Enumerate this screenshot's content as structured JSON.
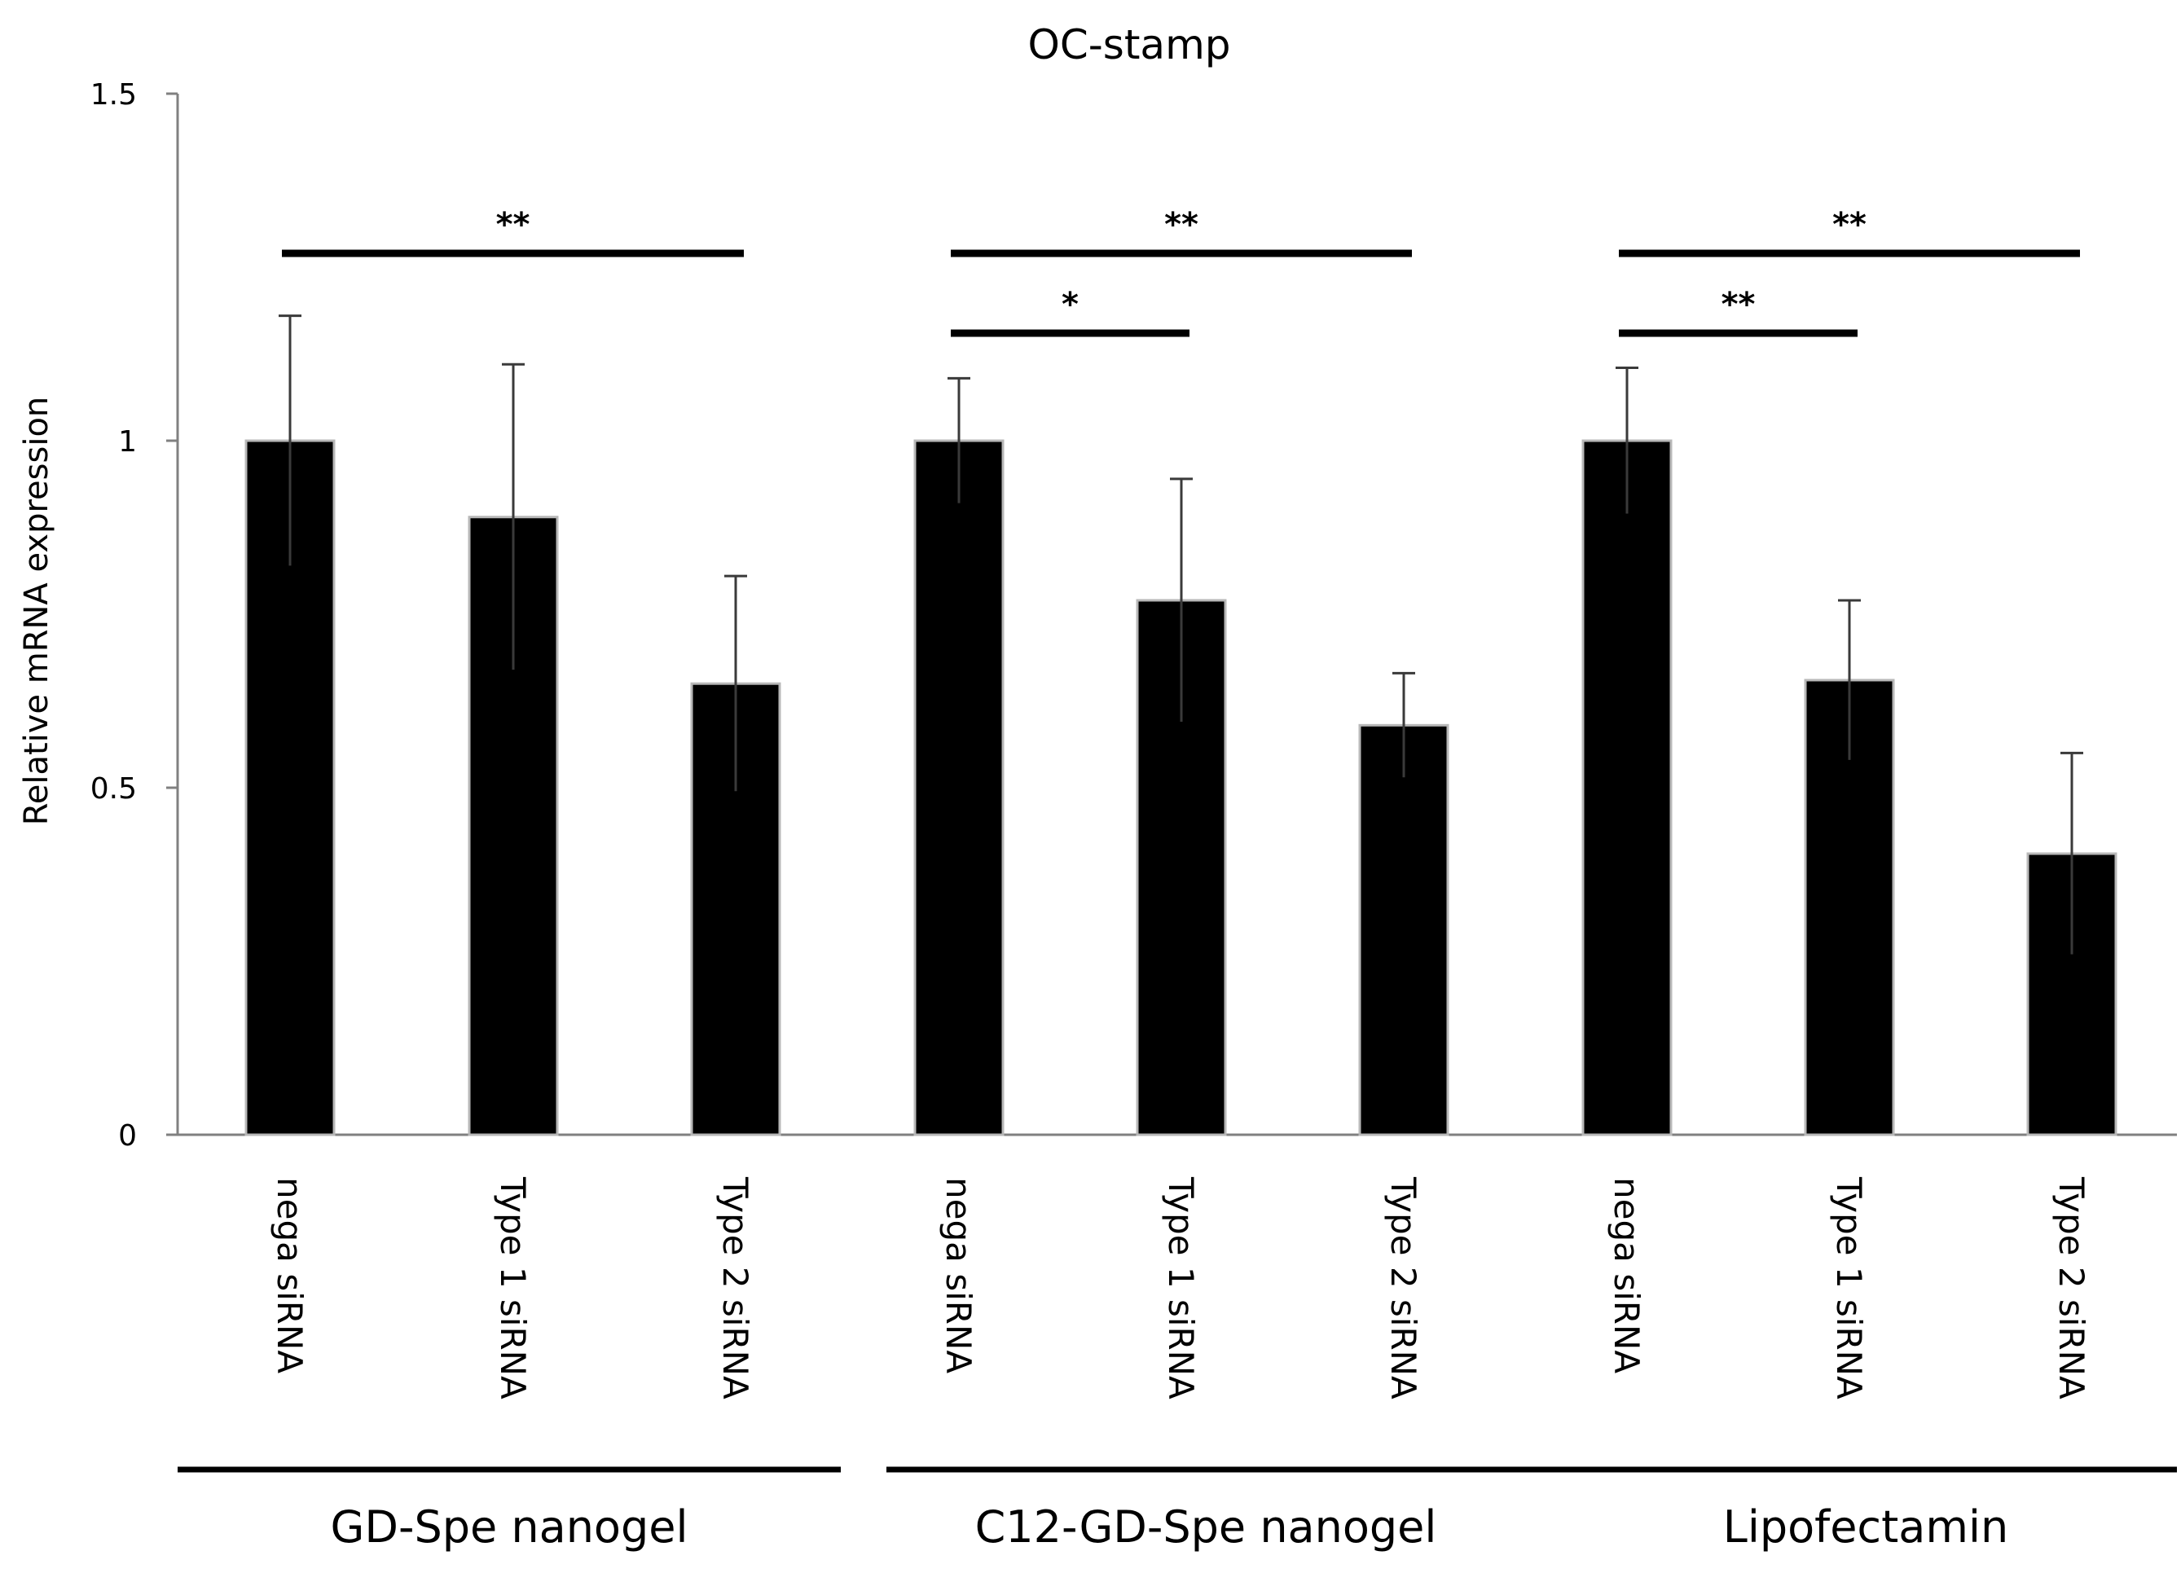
{
  "chart_data": {
    "type": "bar",
    "title": "OC-stamp",
    "xlabel": "",
    "ylabel": "Relative mRNA expression",
    "ylim": [
      0,
      1.5
    ],
    "yticks": [
      0,
      0.5,
      1,
      1.5
    ],
    "ytick_labels": [
      "0",
      "0.5",
      "1",
      "1.5"
    ],
    "grid": false,
    "legend": "none",
    "bar_color": "#000000",
    "categories": [
      "nega siRNA",
      "Type 1 siRNA",
      "Type 2 siRNA",
      "nega siRNA",
      "Type 1 siRNA",
      "Type 2 siRNA",
      "nega siRNA",
      "Type 1 siRNA",
      "Type 2 siRNA"
    ],
    "values": [
      1.0,
      0.89,
      0.65,
      1.0,
      0.77,
      0.59,
      1.0,
      0.655,
      0.405
    ],
    "errors": [
      0.18,
      0.22,
      0.155,
      0.09,
      0.175,
      0.075,
      0.105,
      0.115,
      0.145
    ],
    "groups": [
      {
        "label": "GD-Spe nanogel",
        "bars": [
          0,
          1,
          2
        ]
      },
      {
        "label": "C12-GD-Spe nanogel",
        "bars": [
          3,
          4,
          5
        ]
      },
      {
        "label": "Lipofectamin",
        "bars": [
          6,
          7,
          8
        ]
      }
    ],
    "significance": [
      {
        "from": 0,
        "to": 2,
        "y": 1.27,
        "label": "**"
      },
      {
        "from": 3,
        "to": 5,
        "y": 1.27,
        "label": "**"
      },
      {
        "from": 3,
        "to": 4,
        "y": 1.155,
        "label": "*"
      },
      {
        "from": 6,
        "to": 8,
        "y": 1.27,
        "label": "**"
      },
      {
        "from": 6,
        "to": 7,
        "y": 1.155,
        "label": "**"
      }
    ]
  }
}
